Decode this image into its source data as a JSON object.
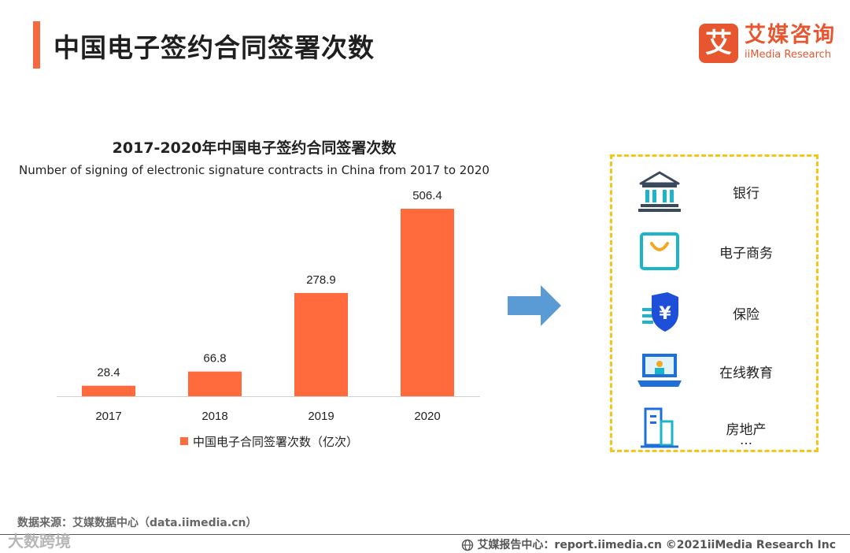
{
  "header": {
    "title": "中国电子签约合同签署次数"
  },
  "logo": {
    "mark": "艾",
    "name_cn": "艾媒咨询",
    "name_en": "iiMedia Research"
  },
  "chart_data": {
    "type": "bar",
    "title": "2017-2020年中国电子签约合同签署次数",
    "subtitle": "Number of signing of electronic signature contracts in China from 2017 to 2020",
    "categories": [
      "2017",
      "2018",
      "2019",
      "2020"
    ],
    "series": [
      {
        "name": "中国电子合同签署次数（亿次）",
        "values": [
          28.4,
          66.8,
          278.9,
          506.4
        ],
        "color": "#ff6b3d"
      }
    ],
    "xlabel": "",
    "ylabel": "",
    "ylim": [
      0,
      506.4
    ],
    "grid": false,
    "legend_position": "bottom",
    "data_labels": [
      "28.4",
      "66.8",
      "278.9",
      "506.4"
    ]
  },
  "arrow": {
    "icon": "right-arrow-icon",
    "color": "#5b9bd5"
  },
  "industries": {
    "items": [
      {
        "label": "银行",
        "icon": "bank-icon"
      },
      {
        "label": "电子商务",
        "icon": "shopping-bag-icon"
      },
      {
        "label": "保险",
        "icon": "insurance-shield-icon"
      },
      {
        "label": "在线教育",
        "icon": "laptop-teacher-icon"
      },
      {
        "label": "房地产",
        "icon": "building-icon"
      }
    ],
    "ellipsis": "…",
    "border_color": "#f5c518"
  },
  "footer": {
    "source": "数据来源：艾媒数据中心（data.iimedia.cn）",
    "report": "艾媒报告中心：report.iimedia.cn ©2021iiMedia Research Inc",
    "watermark": "大数跨境"
  },
  "colors": {
    "accent": "#f26a3d",
    "bar": "#ff6b3d",
    "icon_blue": "#1e6fd9",
    "icon_teal": "#1bb5c9"
  }
}
